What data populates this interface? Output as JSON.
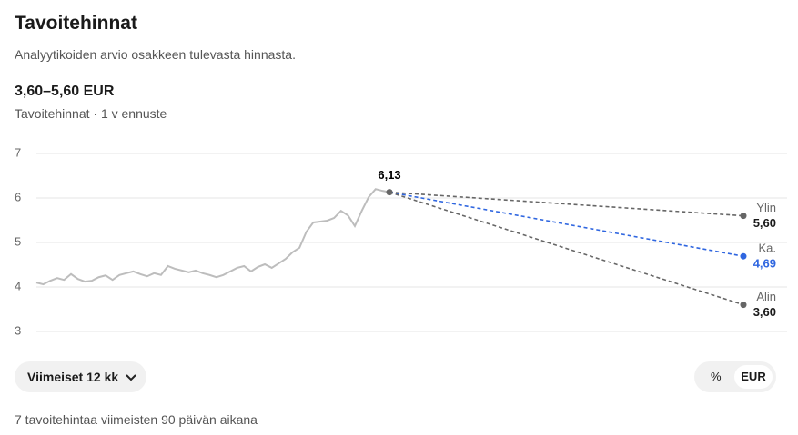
{
  "header": {
    "title": "Tavoitehinnat",
    "subtitle": "Analyytikoiden arvio osakkeen tulevasta hinnasta.",
    "range": "3,60–5,60 EUR",
    "caption": "Tavoitehinnat · 1 v ennuste"
  },
  "chart_data": {
    "type": "line",
    "ylim": [
      3,
      7
    ],
    "yticks": [
      3,
      4,
      5,
      6,
      7
    ],
    "grid": true,
    "history": {
      "color": "#bdbdbd",
      "values": [
        4.1,
        4.06,
        4.14,
        4.2,
        4.16,
        4.29,
        4.18,
        4.12,
        4.14,
        4.22,
        4.26,
        4.16,
        4.27,
        4.31,
        4.35,
        4.29,
        4.24,
        4.31,
        4.27,
        4.47,
        4.41,
        4.37,
        4.33,
        4.37,
        4.31,
        4.27,
        4.22,
        4.27,
        4.35,
        4.43,
        4.47,
        4.35,
        4.45,
        4.51,
        4.43,
        4.53,
        4.63,
        4.78,
        4.88,
        5.24,
        5.45,
        5.47,
        5.49,
        5.55,
        5.71,
        5.61,
        5.37,
        5.71,
        6.02,
        6.2,
        6.16,
        6.13
      ]
    },
    "current": {
      "value": 6.13,
      "label": "6,13"
    },
    "targets": [
      {
        "name": "Ylin",
        "value": 5.6,
        "label": "5,60",
        "color": "#666666"
      },
      {
        "name": "Ka.",
        "value": 4.69,
        "label": "4,69",
        "color": "#2f66e0"
      },
      {
        "name": "Alin",
        "value": 3.6,
        "label": "3,60",
        "color": "#666666"
      }
    ]
  },
  "controls": {
    "period": "Viimeiset 12 kk",
    "toggle": [
      "%",
      "EUR"
    ]
  },
  "footer": "7 tavoitehintaa viimeisten 90 päivän aikana"
}
